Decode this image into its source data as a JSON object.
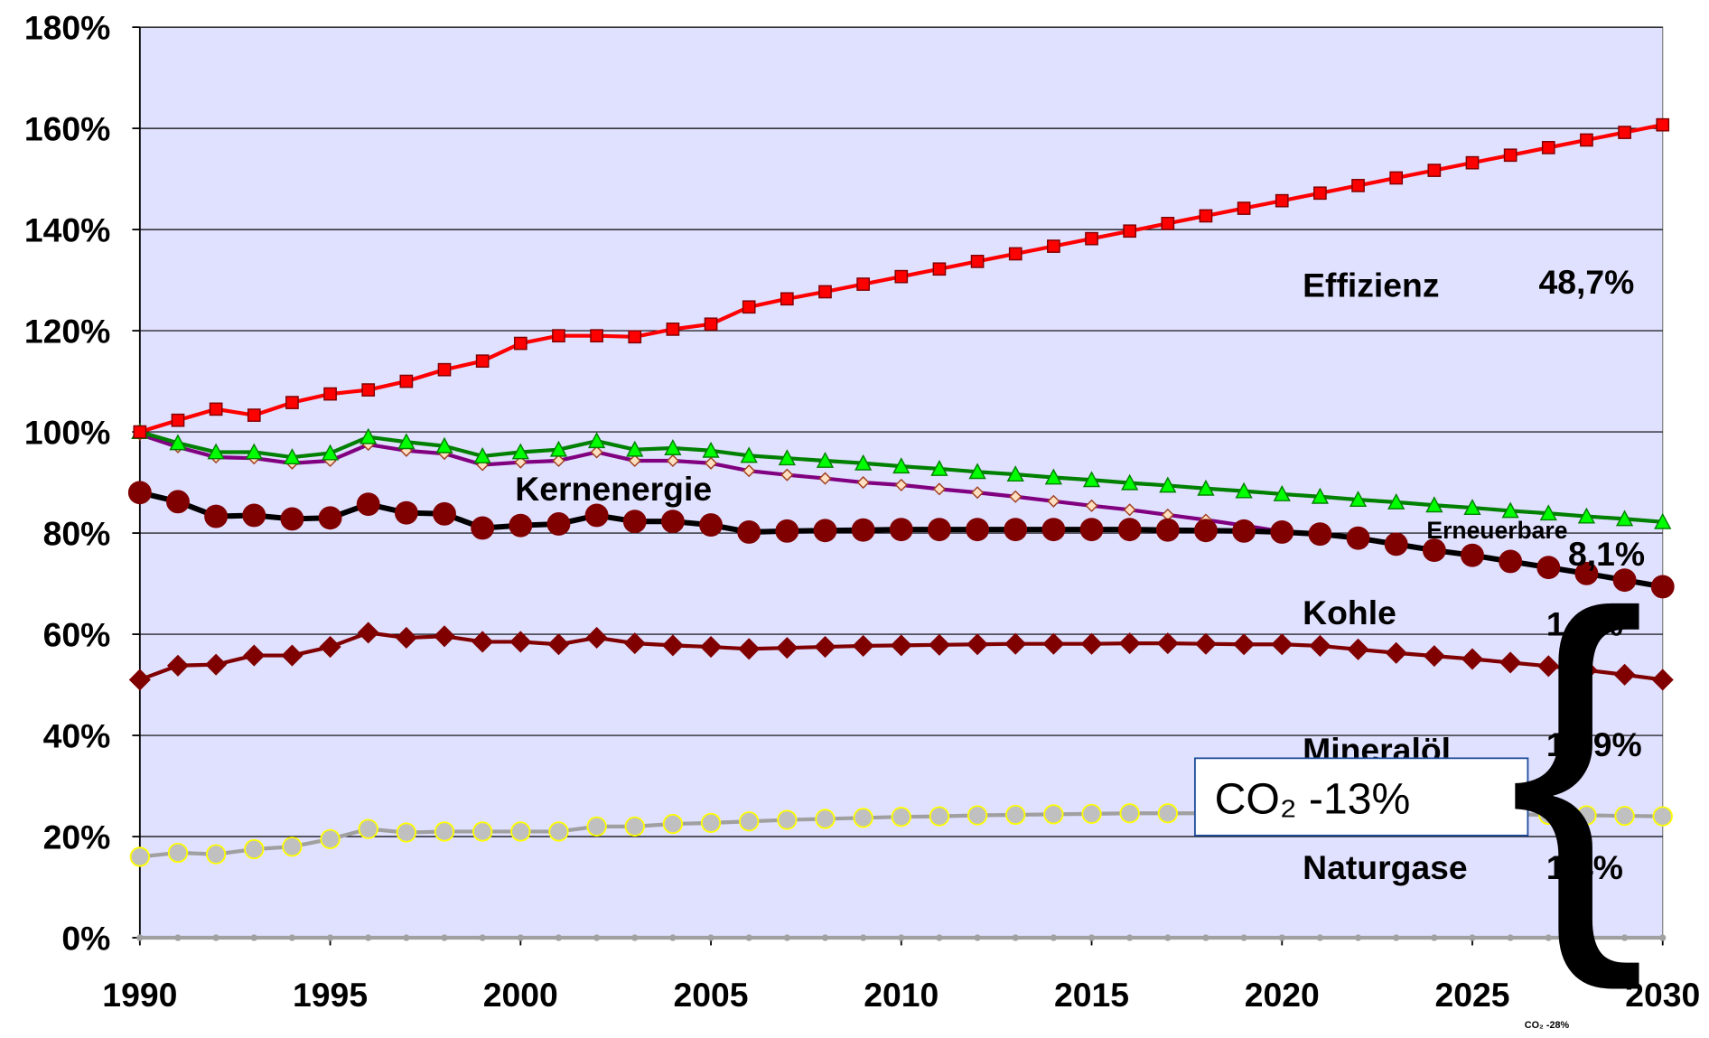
{
  "chart_data": {
    "type": "line",
    "x": [
      1990,
      1991,
      1992,
      1993,
      1994,
      1995,
      1996,
      1997,
      1998,
      1999,
      2000,
      2001,
      2002,
      2003,
      2004,
      2005,
      2006,
      2007,
      2008,
      2009,
      2010,
      2011,
      2012,
      2013,
      2014,
      2015,
      2016,
      2017,
      2018,
      2019,
      2020,
      2021,
      2022,
      2023,
      2024,
      2025,
      2026,
      2027,
      2028,
      2029,
      2030
    ],
    "xlim": [
      1990,
      2030
    ],
    "xticks": [
      1990,
      1995,
      2000,
      2005,
      2010,
      2015,
      2020,
      2025,
      2030
    ],
    "ylim": [
      0,
      180
    ],
    "yticks": [
      {
        "value": 0,
        "label": "0%"
      },
      {
        "value": 20,
        "label": "20%"
      },
      {
        "value": 40,
        "label": "40%"
      },
      {
        "value": 60,
        "label": "60%"
      },
      {
        "value": 80,
        "label": "80%"
      },
      {
        "value": 100,
        "label": "100%"
      },
      {
        "value": 120,
        "label": "120%"
      },
      {
        "value": 140,
        "label": "140%"
      },
      {
        "value": 160,
        "label": "160%"
      },
      {
        "value": 180,
        "label": "180%"
      }
    ],
    "grid": true,
    "background": "#e0e0ff",
    "series": [
      {
        "color": "#a0a0a0",
        "marker": "circle",
        "marker_color": "#a0a0a0",
        "values": [
          0,
          0,
          0,
          0,
          0,
          0,
          0,
          0,
          0,
          0,
          0,
          0,
          0,
          0,
          0,
          0,
          0,
          0,
          0,
          0,
          0,
          0,
          0,
          0,
          0,
          0,
          0,
          0,
          0,
          0,
          0,
          0,
          0,
          0,
          0,
          0,
          0,
          0,
          0,
          0,
          0
        ]
      },
      {
        "color": "#a0a0a0",
        "marker": "circle",
        "marker_color": "#c0c0c0",
        "values": [
          16,
          16.8,
          16.5,
          17.5,
          18,
          19.5,
          21.5,
          20.8,
          21,
          21,
          21,
          21,
          22,
          22,
          22.5,
          22.7,
          23,
          23.3,
          23.5,
          23.7,
          23.9,
          24,
          24.2,
          24.3,
          24.4,
          24.5,
          24.6,
          24.6,
          24.6,
          24.6,
          24.6,
          24.6,
          24.6,
          24.6,
          24.5,
          24.5,
          24.4,
          24.3,
          24.2,
          24.1,
          24
        ]
      },
      {
        "color": "#800000",
        "marker": "diamond",
        "marker_color": "#800000",
        "values": [
          51,
          53.8,
          54,
          55.8,
          55.8,
          57.5,
          60.3,
          59.3,
          59.6,
          58.5,
          58.5,
          58,
          59.3,
          58.2,
          57.8,
          57.5,
          57.1,
          57.3,
          57.5,
          57.7,
          57.8,
          57.9,
          58,
          58.1,
          58.1,
          58.1,
          58.2,
          58.2,
          58.1,
          58,
          58,
          57.7,
          57,
          56.3,
          55.7,
          55.1,
          54.4,
          53.7,
          52.9,
          52,
          51
        ]
      },
      {
        "color": "#800080",
        "marker": "small-diamond",
        "marker_color": "#ffe0c0",
        "values": [
          99.5,
          97,
          95,
          94.8,
          93.8,
          94.3,
          97.5,
          96.3,
          95.7,
          93.5,
          94,
          94.3,
          96,
          94.3,
          94.3,
          93.8,
          92.3,
          91.5,
          90.8,
          90,
          89.5,
          88.7,
          88,
          87.2,
          86.3,
          85.4,
          84.6,
          83.6,
          82.6,
          81.5,
          80.3,
          null,
          null,
          null,
          null,
          null,
          null,
          null,
          null,
          null,
          null
        ]
      },
      {
        "color": "#000000",
        "marker": "circle",
        "marker_color": "#800000",
        "values": [
          88,
          86.2,
          83.3,
          83.5,
          82.8,
          83,
          85.7,
          84,
          83.8,
          81,
          81.5,
          81.8,
          83.5,
          82.3,
          82.3,
          81.6,
          80.2,
          80.4,
          80.5,
          80.6,
          80.7,
          80.7,
          80.7,
          80.7,
          80.7,
          80.7,
          80.7,
          80.6,
          80.5,
          80.4,
          80.2,
          79.8,
          79,
          77.8,
          76.6,
          75.6,
          74.4,
          73.2,
          72,
          70.7,
          69.4
        ]
      },
      {
        "color": "#008000",
        "marker": "triangle",
        "marker_color": "#00ff00",
        "values": [
          100,
          97.8,
          96,
          96,
          95,
          95.8,
          99,
          98,
          97.2,
          95.2,
          96,
          96.5,
          98.2,
          96.5,
          96.8,
          96.3,
          95.3,
          94.8,
          94.3,
          93.8,
          93.2,
          92.7,
          92.1,
          91.6,
          91,
          90.5,
          89.9,
          89.4,
          88.8,
          88.3,
          87.7,
          87.2,
          86.6,
          86.1,
          85.5,
          85,
          84.4,
          83.9,
          83.3,
          82.8,
          82.2
        ]
      },
      {
        "color": "#ff0000",
        "marker": "square",
        "marker_color": "#ff0000",
        "values": [
          100,
          102.3,
          104.5,
          103.3,
          105.8,
          107.5,
          108.3,
          110,
          112.3,
          114,
          117.5,
          119,
          119,
          118.8,
          120.3,
          121.3,
          124.7,
          126.3,
          127.7,
          129.2,
          130.7,
          132.2,
          133.7,
          135.2,
          136.7,
          138.2,
          139.7,
          141.2,
          142.7,
          144.2,
          145.7,
          147.2,
          148.7,
          150.2,
          151.7,
          153.2,
          154.7,
          156.2,
          157.7,
          159.2,
          160.7
        ]
      }
    ],
    "annotations": [
      "Effizienz",
      "48,7%",
      "Kernenergie",
      "Erneuerbare",
      "8,1%",
      "Kohle",
      "1,4%",
      "Mineralöl",
      "16,9%",
      "Naturgase",
      "1,4%",
      "CO₂ -13%",
      "{",
      "CO₂ -28%"
    ]
  }
}
